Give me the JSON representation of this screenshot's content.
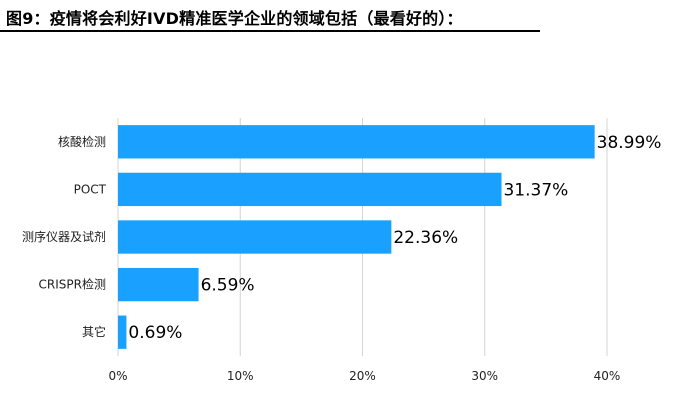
{
  "chart_data": {
    "type": "bar",
    "orientation": "horizontal",
    "title": "图9：疫情将会利好IVD精准医学企业的领域包括（最看好的）：",
    "categories": [
      "核酸检测",
      "POCT",
      "测序仪器及试剂",
      "CRISPR检测",
      "其它"
    ],
    "values": [
      38.99,
      31.37,
      22.36,
      6.59,
      0.69
    ],
    "value_labels": [
      "38.99%",
      "31.37%",
      "22.36%",
      "6.59%",
      "0.69%"
    ],
    "xlim": [
      0,
      40
    ],
    "xticks": [
      0,
      10,
      20,
      30,
      40
    ],
    "xtick_labels": [
      "0%",
      "10%",
      "20%",
      "30%",
      "40%"
    ],
    "xlabel": "",
    "ylabel": "",
    "grid": "vertical",
    "legend": "none",
    "bar_color": "#1aa0ff"
  }
}
